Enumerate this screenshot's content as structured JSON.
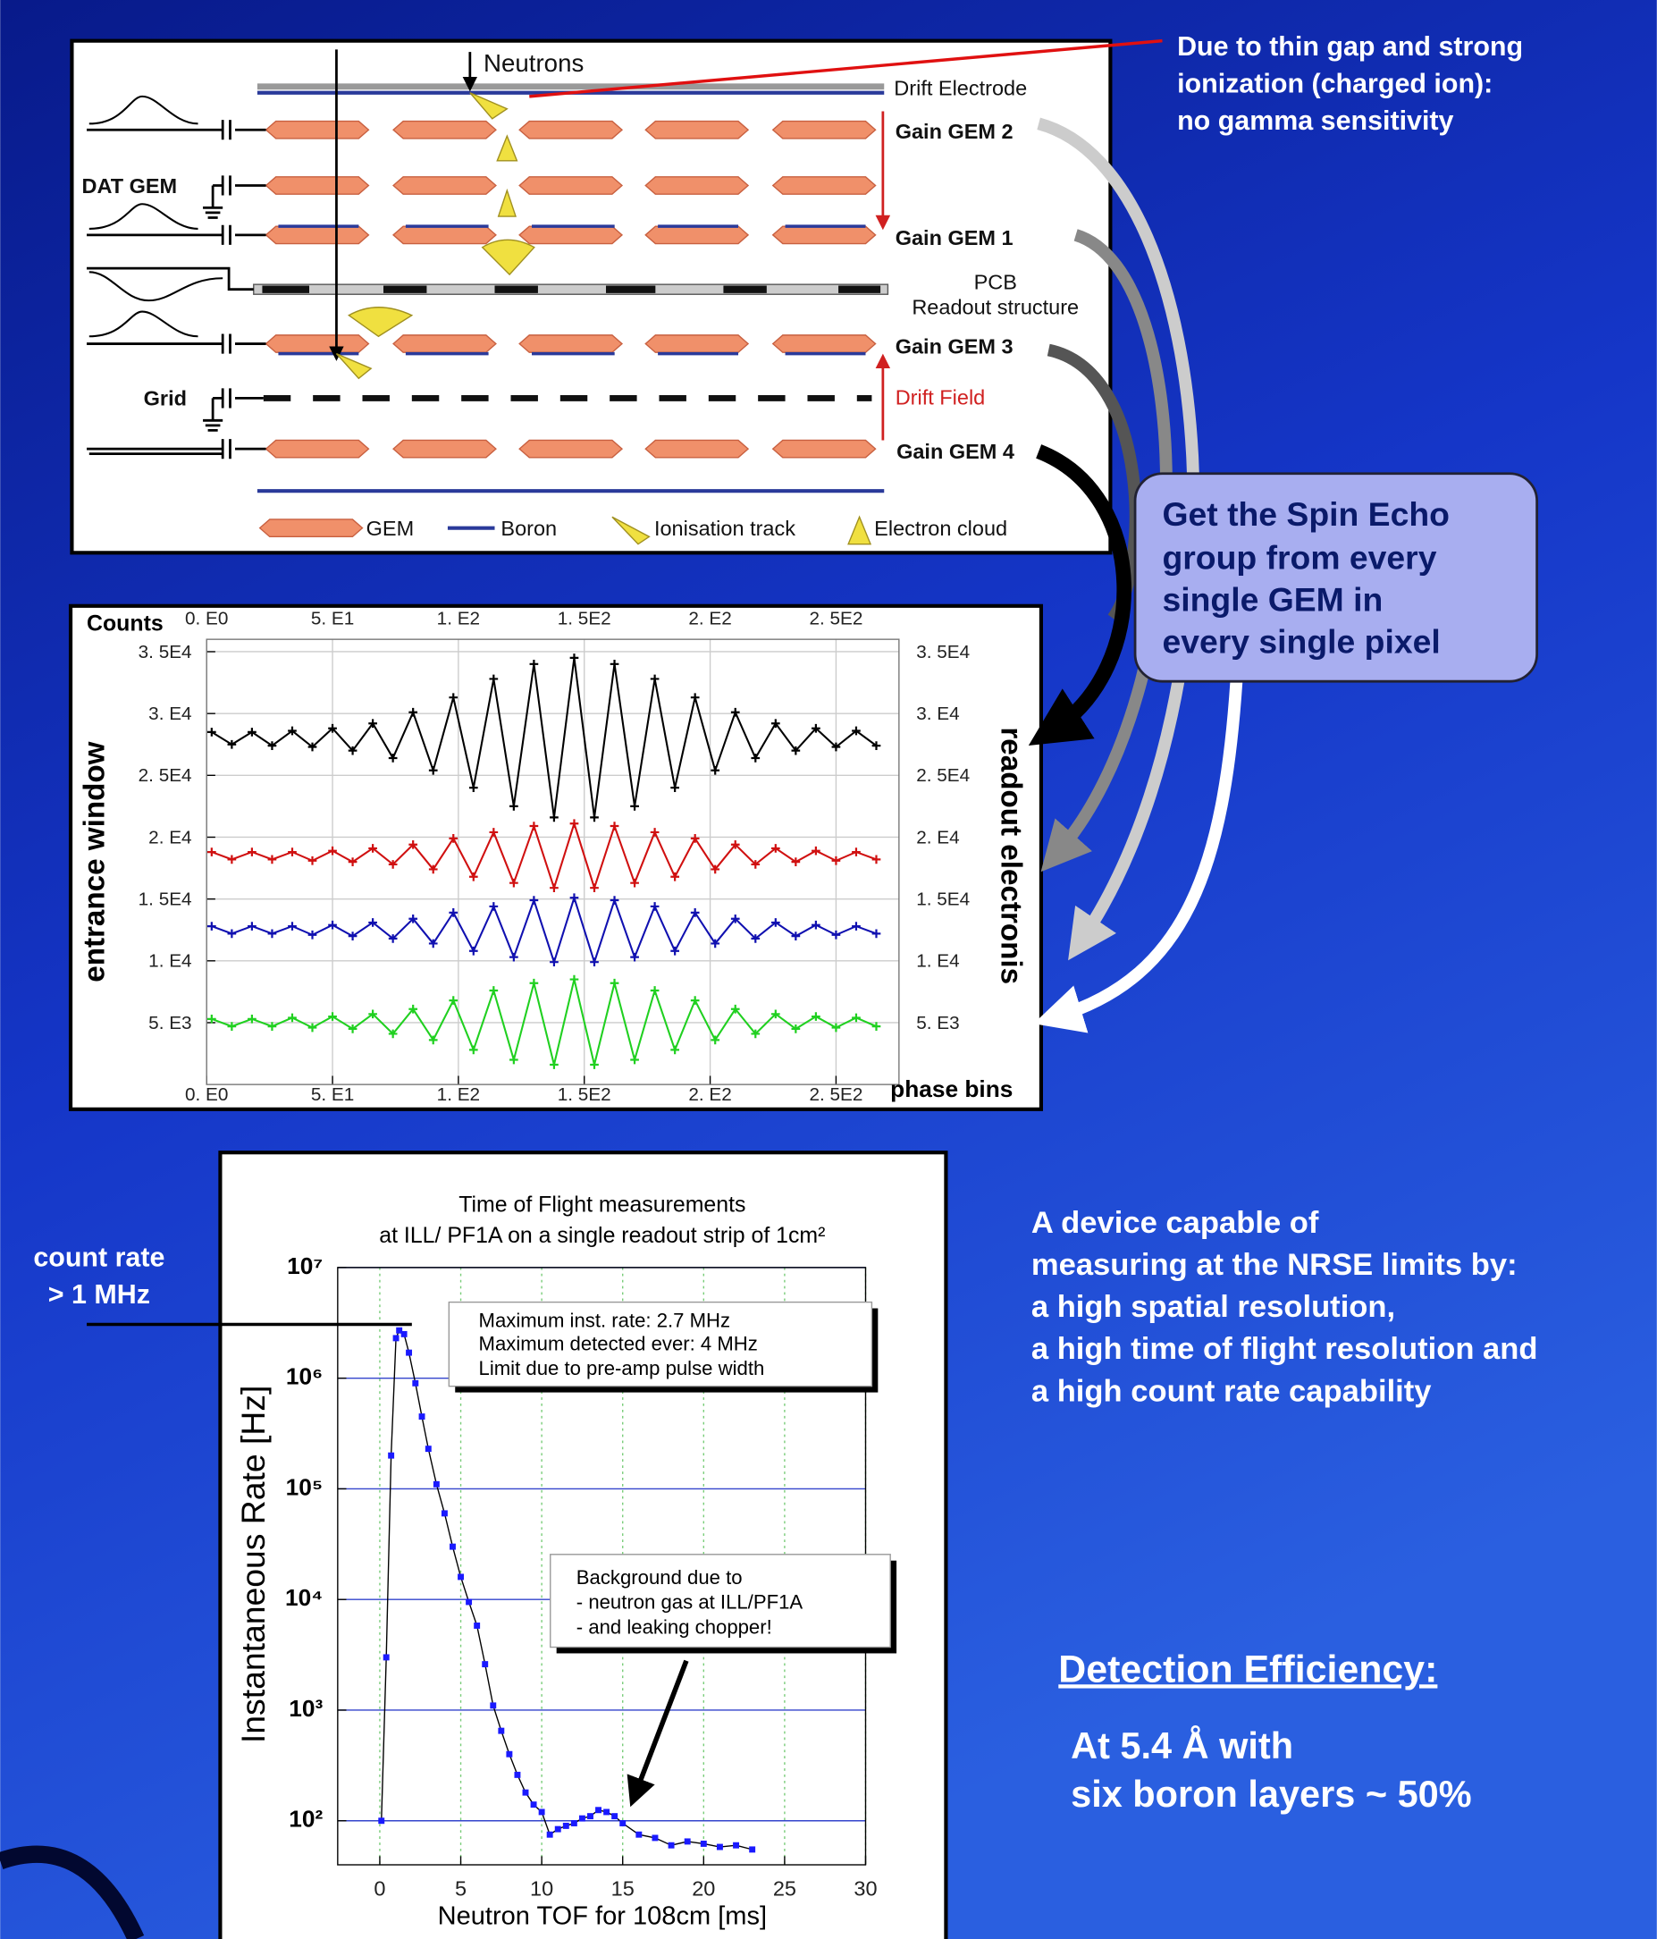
{
  "slide": {
    "note": [
      "Due to thin gap and strong",
      "ionization (charged ion):",
      "no gamma sensitivity"
    ],
    "callout": [
      "Get the Spin Echo",
      "group from every",
      "single GEM in",
      "every single pixel"
    ],
    "summary": [
      "A device capable of",
      "measuring at the NRSE limits by:",
      "a high spatial resolution,",
      "a high time of flight resolution and",
      "a high count rate capability"
    ],
    "efficiency_heading": "Detection Efficiency:",
    "efficiency": [
      "At  5.4 Å with",
      "six boron layers ~ 50%"
    ],
    "rate_note": [
      "count rate",
      "> 1 MHz"
    ]
  },
  "diagram": {
    "neutrons": "Neutrons",
    "drift_electrode": "Drift Electrode",
    "gain_gem_2": "Gain GEM 2",
    "dat_gem": "DAT GEM",
    "gain_gem_1": "Gain GEM 1",
    "pcb": "PCB",
    "readout": "Readout structure",
    "gain_gem_3": "Gain GEM 3",
    "grid": "Grid",
    "drift_field": "Drift Field",
    "gain_gem_4": "Gain GEM 4",
    "legend": [
      "GEM",
      "Boron",
      "Ionisation track",
      "Electron cloud"
    ]
  },
  "chart_data": [
    {
      "type": "line",
      "marker": "plus",
      "y_label": "Counts",
      "left_label": "entrance window",
      "right_label": "readout electronis",
      "x_label": "phase bins",
      "x": [
        2,
        10,
        18,
        26,
        34,
        42,
        50,
        58,
        66,
        74,
        82,
        90,
        98,
        106,
        114,
        122,
        130,
        138,
        146,
        154,
        162,
        170,
        178,
        186,
        194,
        202,
        210,
        218,
        226,
        234,
        242,
        250,
        258,
        266
      ],
      "series": [
        {
          "color": "#000000",
          "values": [
            28500,
            27500,
            28500,
            27400,
            28600,
            27300,
            28800,
            27000,
            29200,
            26400,
            30100,
            25400,
            31300,
            24000,
            32800,
            22500,
            34000,
            21600,
            34500,
            21600,
            34000,
            22500,
            32800,
            24000,
            31300,
            25400,
            30100,
            26400,
            29200,
            27000,
            28800,
            27300,
            28600,
            27400
          ]
        },
        {
          "color": "#d01010",
          "values": [
            18800,
            18200,
            18800,
            18200,
            18800,
            18100,
            18900,
            18000,
            19100,
            17800,
            19400,
            17400,
            19900,
            16800,
            20400,
            16300,
            20900,
            15900,
            21100,
            15900,
            20900,
            16300,
            20400,
            16800,
            19900,
            17400,
            19400,
            17800,
            19100,
            18000,
            18900,
            18100,
            18800,
            18200
          ]
        },
        {
          "color": "#1010b0",
          "values": [
            12800,
            12200,
            12800,
            12200,
            12800,
            12100,
            12900,
            12000,
            13100,
            11800,
            13400,
            11400,
            13900,
            10800,
            14400,
            10300,
            14900,
            9900,
            15100,
            9900,
            14900,
            10300,
            14400,
            10800,
            13900,
            11400,
            13400,
            11800,
            13100,
            12000,
            12900,
            12100,
            12800,
            12200
          ]
        },
        {
          "color": "#20d020",
          "values": [
            5300,
            4700,
            5300,
            4700,
            5400,
            4600,
            5500,
            4500,
            5700,
            4100,
            6100,
            3600,
            6800,
            2800,
            7600,
            2000,
            8200,
            1600,
            8500,
            1600,
            8200,
            2000,
            7600,
            2800,
            6800,
            3600,
            6100,
            4100,
            5700,
            4500,
            5500,
            4600,
            5400,
            4700
          ]
        }
      ],
      "xlim": [
        0,
        275
      ],
      "ylim": [
        0,
        36000
      ],
      "xticks": [
        {
          "value": 0,
          "label": "0. E0"
        },
        {
          "value": 50,
          "label": "5. E1"
        },
        {
          "value": 100,
          "label": "1. E2"
        },
        {
          "value": 150,
          "label": "1. 5E2"
        },
        {
          "value": 200,
          "label": "2. E2"
        },
        {
          "value": 250,
          "label": "2. 5E2"
        }
      ],
      "yticks": [
        {
          "value": 5000,
          "label": "5. E3"
        },
        {
          "value": 10000,
          "label": "1. E4"
        },
        {
          "value": 15000,
          "label": "1. 5E4"
        },
        {
          "value": 20000,
          "label": "2. E4"
        },
        {
          "value": 25000,
          "label": "2. 5E4"
        },
        {
          "value": 30000,
          "label": "3. E4"
        },
        {
          "value": 35000,
          "label": "3. 5E4"
        }
      ],
      "grid": true
    },
    {
      "type": "line",
      "marker": "square",
      "log_y": true,
      "line_color": "#000000",
      "title": "Time of Flight measurements",
      "subtitle": "at ILL/ PF1A on a single readout strip of 1cm²",
      "x_label": "Neutron TOF for 108cm [ms]",
      "y_label": "Instantaneous Rate [Hz]",
      "annotations": [
        [
          "Maximum inst. rate: 2.7 MHz",
          "Maximum detected ever: 4 MHz",
          "Limit due to pre-amp pulse width"
        ],
        [
          "Background due to",
          "- neutron gas at ILL/PF1A",
          "- and leaking chopper!"
        ]
      ],
      "x": [
        0.1,
        0.4,
        0.7,
        1,
        1.2,
        1.5,
        1.8,
        2.2,
        2.6,
        3,
        3.5,
        4,
        4.5,
        5,
        5.5,
        6,
        6.5,
        7,
        7.5,
        8,
        8.5,
        9,
        9.5,
        10,
        10.5,
        11,
        11.5,
        12,
        12.5,
        13,
        13.5,
        14,
        14.5,
        15,
        16,
        17,
        18,
        19,
        20,
        21,
        22,
        23
      ],
      "series": [
        {
          "color": "#1a1aff",
          "values": [
            100,
            3000,
            200000,
            2300000,
            2700000,
            2500000,
            1700000,
            900000,
            450000,
            230000,
            110000,
            60000,
            30000,
            16000,
            9500,
            5800,
            2600,
            1100,
            650,
            400,
            260,
            180,
            140,
            120,
            75,
            84,
            90,
            95,
            105,
            110,
            125,
            120,
            110,
            95,
            75,
            70,
            60,
            65,
            62,
            58,
            60,
            55
          ]
        }
      ],
      "xlim": [
        -2.6,
        30
      ],
      "ylim": [
        40,
        10000000
      ],
      "xticks": [
        0,
        5,
        10,
        15,
        20,
        25,
        30
      ],
      "yticks": [
        {
          "value": 100,
          "label": "10²"
        },
        {
          "value": 1000,
          "label": "10³"
        },
        {
          "value": 10000,
          "label": "10⁴"
        },
        {
          "value": 100000,
          "label": "10⁵"
        },
        {
          "value": 1000000,
          "label": "10⁶"
        },
        {
          "value": 10000000,
          "label": "10⁷"
        }
      ],
      "grid": true
    }
  ]
}
